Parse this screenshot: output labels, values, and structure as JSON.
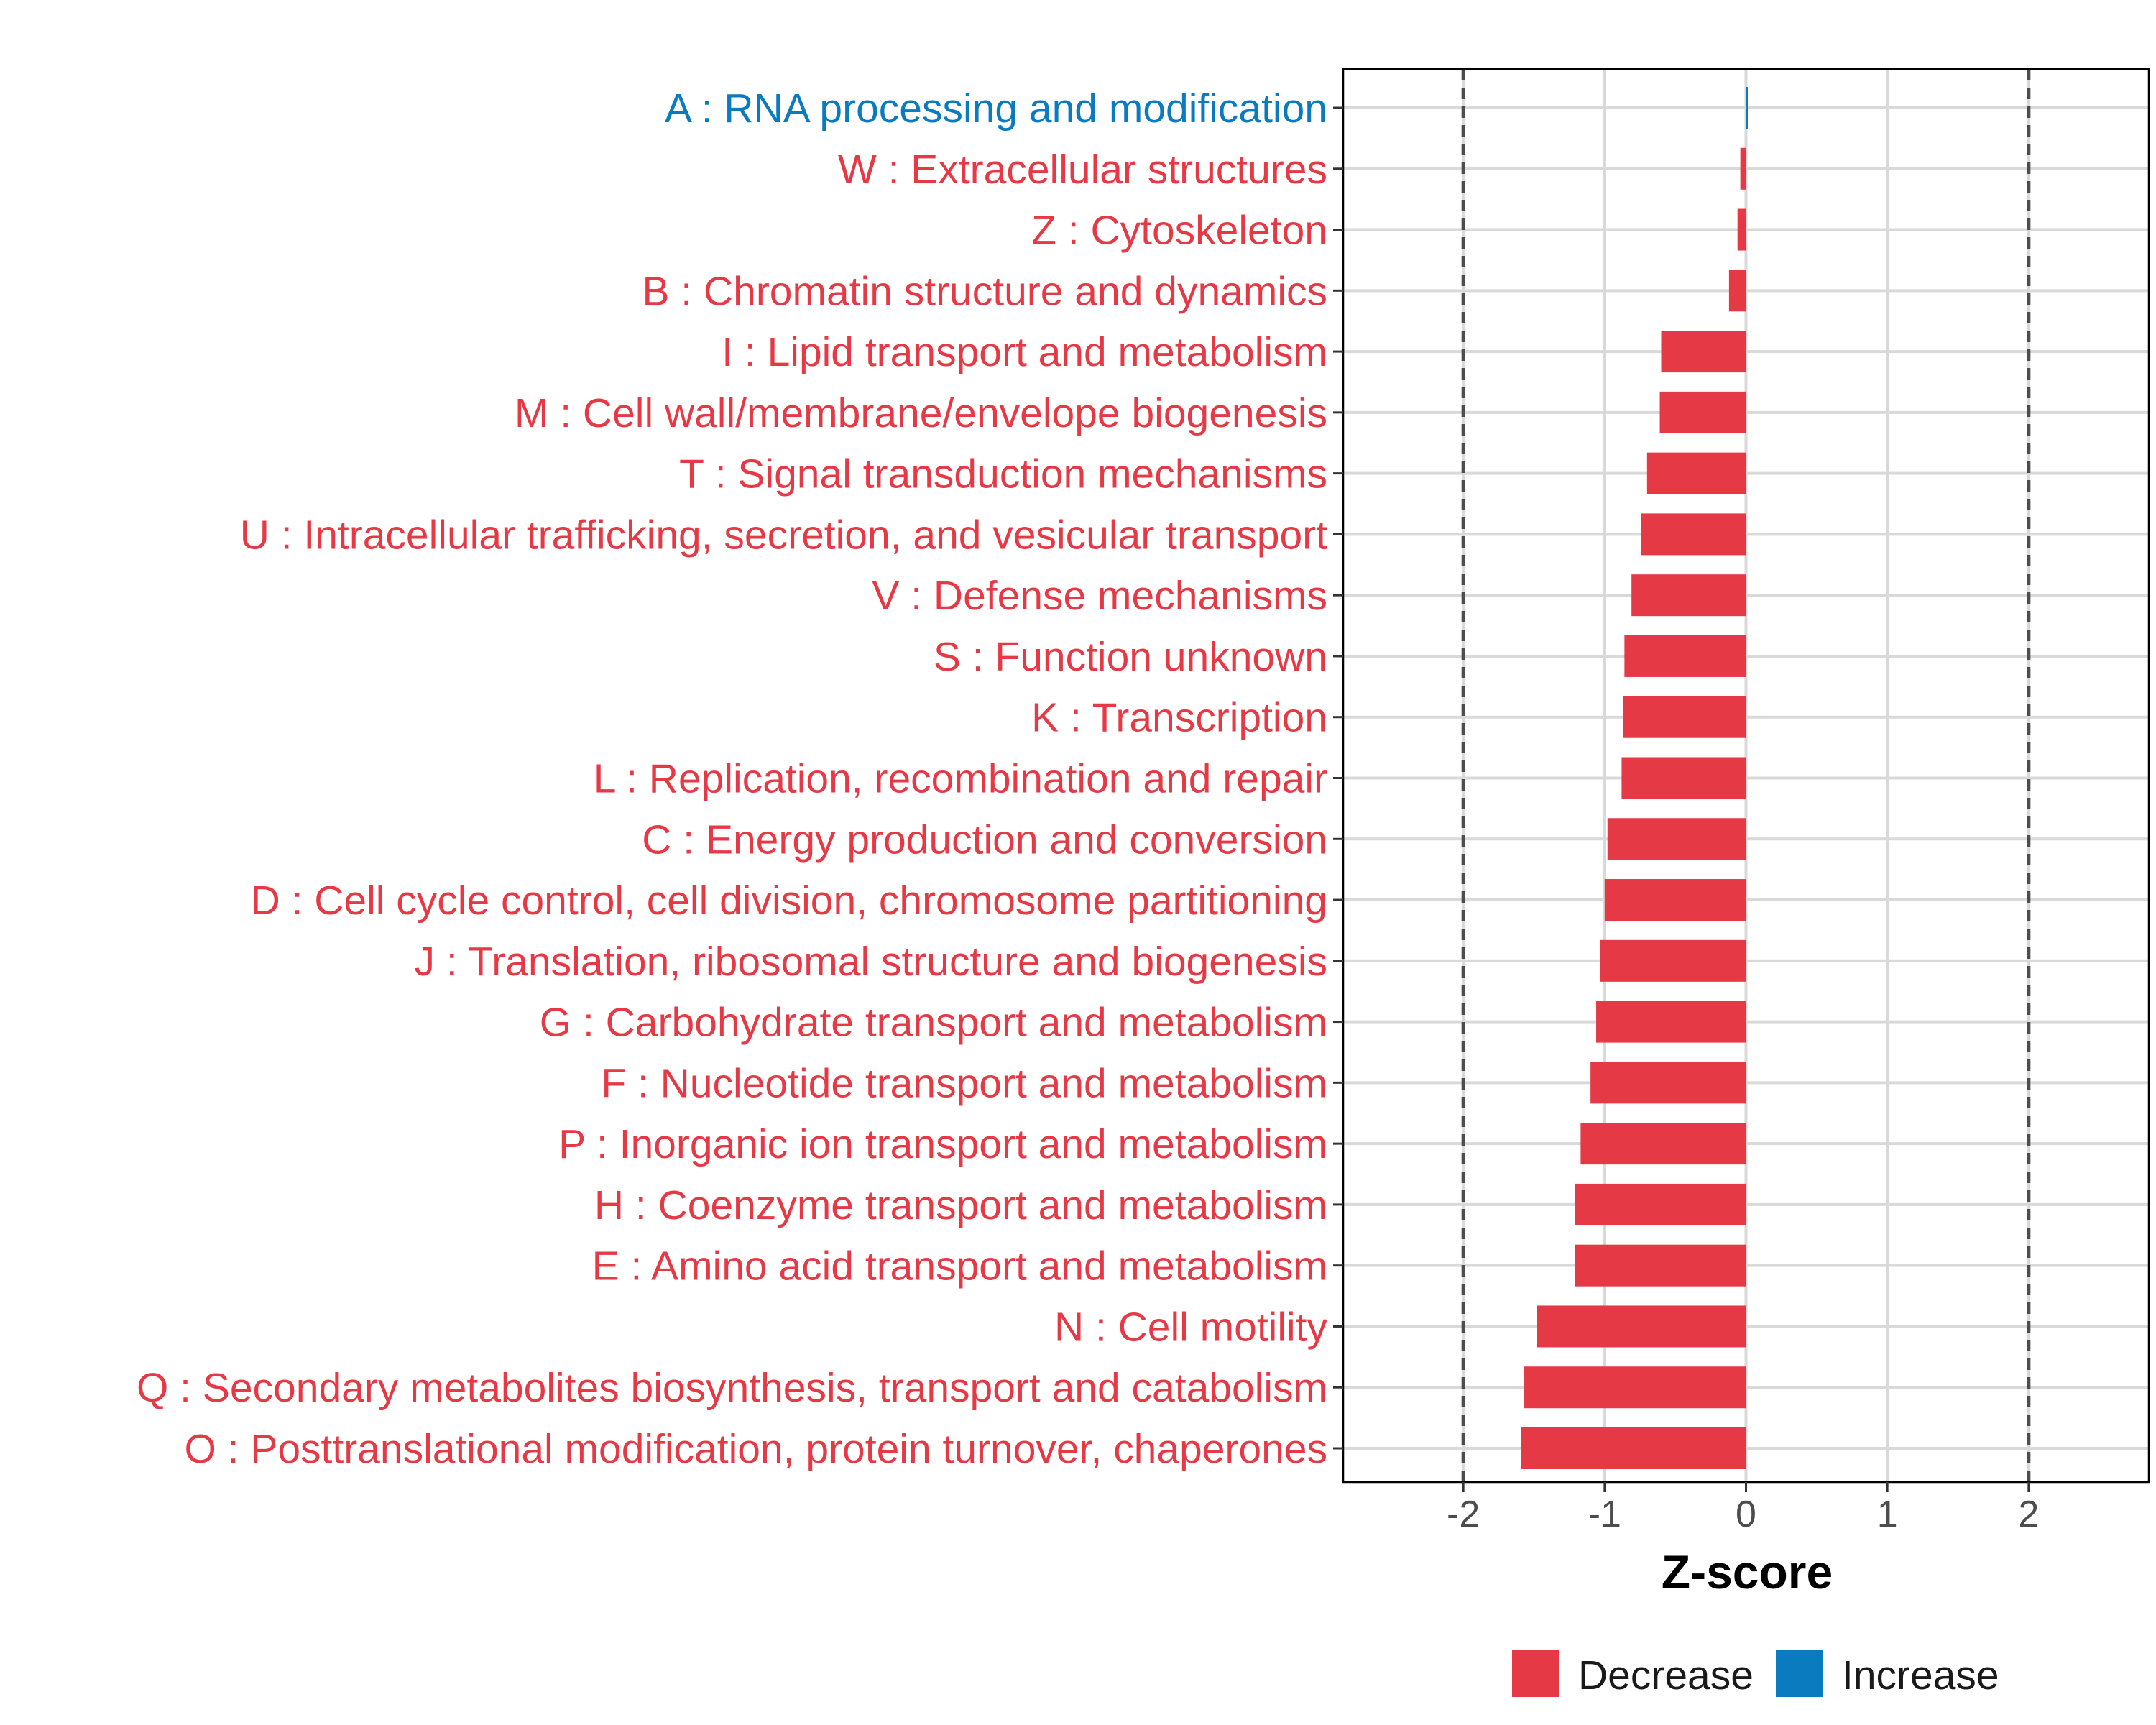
{
  "chart_data": {
    "type": "bar",
    "orientation": "horizontal",
    "title": "",
    "xlabel": "Z-score",
    "ylabel": "",
    "xlim": [
      -2.85,
      2.85
    ],
    "xticks": [
      -2,
      -1,
      0,
      1,
      2
    ],
    "xtick_labels": [
      "-2",
      "-1",
      "0",
      "1",
      "2"
    ],
    "reference_lines": [
      -2,
      2
    ],
    "grid": true,
    "categories": [
      "A : RNA processing and modification",
      "W : Extracellular structures",
      "Z : Cytoskeleton",
      "B : Chromatin structure and dynamics",
      "I : Lipid transport and metabolism",
      "M : Cell wall/membrane/envelope biogenesis",
      "T : Signal transduction mechanisms",
      "U : Intracellular trafficking, secretion, and vesicular transport",
      "V : Defense mechanisms",
      "S : Function unknown",
      "K : Transcription",
      "L : Replication, recombination and repair",
      "C : Energy production and conversion",
      "D : Cell cycle control, cell division, chromosome partitioning",
      "J : Translation, ribosomal structure and biogenesis",
      "G : Carbohydrate transport and metabolism",
      "F : Nucleotide transport and metabolism",
      "P : Inorganic ion transport and metabolism",
      "H : Coenzyme transport and metabolism",
      "E : Amino acid transport and metabolism",
      "N : Cell motility",
      "Q : Secondary metabolites biosynthesis, transport and catabolism",
      "O : Posttranslational modification, protein turnover, chaperones"
    ],
    "values": [
      0.01,
      -0.04,
      -0.06,
      -0.12,
      -0.6,
      -0.61,
      -0.7,
      -0.74,
      -0.81,
      -0.86,
      -0.87,
      -0.88,
      -0.98,
      -1.0,
      -1.03,
      -1.06,
      -1.1,
      -1.17,
      -1.21,
      -1.21,
      -1.48,
      -1.57,
      -1.59
    ],
    "legend": {
      "placement": "bottom",
      "entries": [
        {
          "label": "Decrease",
          "color": "#E63946"
        },
        {
          "label": "Increase",
          "color": "#0A7BBF"
        }
      ]
    }
  }
}
